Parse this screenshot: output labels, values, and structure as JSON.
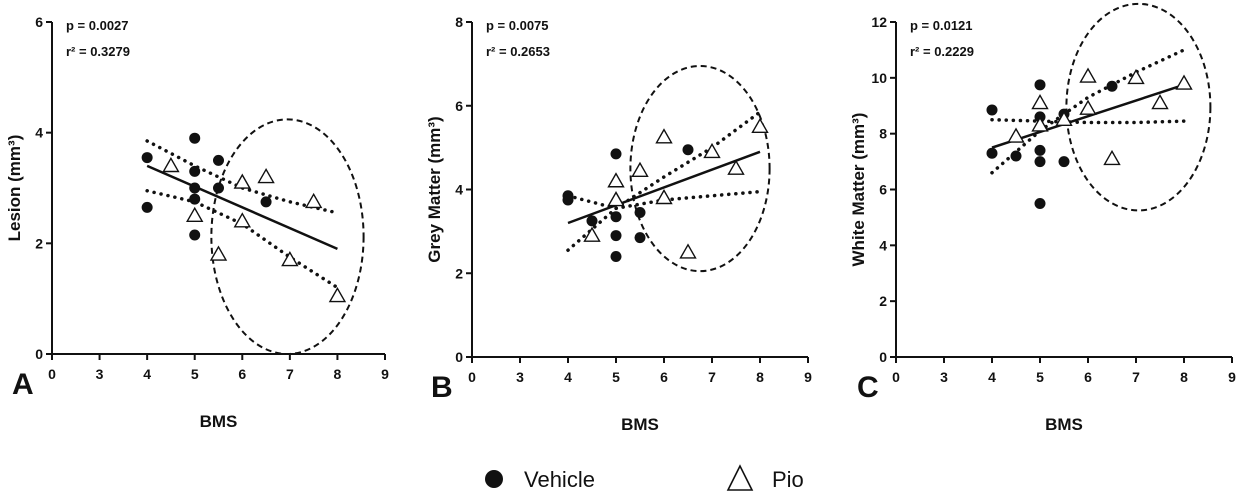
{
  "legend": [
    {
      "label": "Vehicle",
      "marker": "filled-circle"
    },
    {
      "label": "Pio",
      "marker": "open-triangle"
    }
  ],
  "colors": {
    "ink": "#111111",
    "background": "#ffffff"
  },
  "chart_data": [
    {
      "type": "scatter",
      "panel": "A",
      "xlabel": "BMS",
      "ylabel": "Lesion (mm³)",
      "xlim": [
        0,
        9
      ],
      "ylim": [
        0,
        6
      ],
      "xticks": [
        "0",
        "3",
        "4",
        "5",
        "6",
        "7",
        "8",
        "9"
      ],
      "yticks": [
        "0",
        "2",
        "4",
        "6"
      ],
      "stats": {
        "p": "p = 0.0027",
        "r2": "r² = 0.3279"
      },
      "series": [
        {
          "name": "Vehicle",
          "marker": "filled-circle",
          "points": [
            [
              4,
              3.55
            ],
            [
              4,
              2.65
            ],
            [
              5,
              3.9
            ],
            [
              5,
              3.3
            ],
            [
              5,
              3.0
            ],
            [
              5,
              2.8
            ],
            [
              5,
              2.15
            ],
            [
              5.5,
              3.5
            ],
            [
              5.5,
              3.0
            ],
            [
              6.5,
              2.75
            ]
          ]
        },
        {
          "name": "Pio",
          "marker": "open-triangle",
          "points": [
            [
              4.5,
              3.4
            ],
            [
              5,
              2.5
            ],
            [
              5.5,
              1.8
            ],
            [
              6,
              3.1
            ],
            [
              6,
              2.4
            ],
            [
              6.5,
              3.2
            ],
            [
              7,
              1.7
            ],
            [
              7.5,
              2.75
            ],
            [
              8,
              1.05
            ]
          ]
        }
      ],
      "fit_line": [
        [
          4,
          3.4
        ],
        [
          8,
          1.9
        ]
      ],
      "ci_upper": [
        [
          4,
          3.85
        ],
        [
          5,
          3.4
        ],
        [
          6,
          3.0
        ],
        [
          7,
          2.75
        ],
        [
          8,
          2.55
        ]
      ],
      "ci_lower": [
        [
          4,
          2.95
        ],
        [
          5,
          2.75
        ],
        [
          6,
          2.35
        ],
        [
          7,
          1.75
        ],
        [
          8,
          1.2
        ]
      ],
      "ellipse": {
        "cx": 6.95,
        "cy": 2.12,
        "rx": 1.6,
        "ry": 2.12
      }
    },
    {
      "type": "scatter",
      "panel": "B",
      "xlabel": "BMS",
      "ylabel": "Grey Matter (mm³)",
      "xlim": [
        0,
        9
      ],
      "ylim": [
        0,
        8
      ],
      "xticks": [
        "0",
        "3",
        "4",
        "5",
        "6",
        "7",
        "8",
        "9"
      ],
      "yticks": [
        "0",
        "2",
        "4",
        "6",
        "8"
      ],
      "stats": {
        "p": "p = 0.0075",
        "r2": "r² = 0.2653"
      },
      "series": [
        {
          "name": "Vehicle",
          "marker": "filled-circle",
          "points": [
            [
              4,
              3.85
            ],
            [
              4,
              3.75
            ],
            [
              4.5,
              3.25
            ],
            [
              5,
              4.85
            ],
            [
              5,
              3.35
            ],
            [
              5,
              2.9
            ],
            [
              5,
              2.4
            ],
            [
              5.5,
              3.45
            ],
            [
              5.5,
              2.85
            ],
            [
              6.5,
              4.95
            ]
          ]
        },
        {
          "name": "Pio",
          "marker": "open-triangle",
          "points": [
            [
              4.5,
              2.9
            ],
            [
              5,
              4.2
            ],
            [
              5,
              3.75
            ],
            [
              5.5,
              4.45
            ],
            [
              6,
              5.25
            ],
            [
              6,
              3.8
            ],
            [
              6.5,
              2.5
            ],
            [
              7,
              4.9
            ],
            [
              7.5,
              4.5
            ],
            [
              8,
              5.5
            ]
          ]
        }
      ],
      "fit_line": [
        [
          4,
          3.2
        ],
        [
          8,
          4.9
        ]
      ],
      "ci_upper": [
        [
          4,
          2.55
        ],
        [
          5,
          3.55
        ],
        [
          6,
          4.3
        ],
        [
          7,
          5.0
        ],
        [
          8,
          5.85
        ]
      ],
      "ci_lower": [
        [
          4,
          3.85
        ],
        [
          5,
          3.55
        ],
        [
          6,
          3.75
        ],
        [
          7,
          3.85
        ],
        [
          8,
          3.95
        ]
      ],
      "ellipse": {
        "cx": 6.75,
        "cy": 4.5,
        "rx": 1.45,
        "ry": 2.45
      }
    },
    {
      "type": "scatter",
      "panel": "C",
      "xlabel": "BMS",
      "ylabel": "White Matter (mm³)",
      "xlim": [
        0,
        9
      ],
      "ylim": [
        0,
        12
      ],
      "xticks": [
        "0",
        "3",
        "4",
        "5",
        "6",
        "7",
        "8",
        "9"
      ],
      "yticks": [
        "0",
        "2",
        "4",
        "6",
        "8",
        "10",
        "12"
      ],
      "stats": {
        "p": "p = 0.0121",
        "r2": "r² = 0.2229"
      },
      "series": [
        {
          "name": "Vehicle",
          "marker": "filled-circle",
          "points": [
            [
              4,
              8.85
            ],
            [
              4,
              7.3
            ],
            [
              4.5,
              7.2
            ],
            [
              5,
              9.75
            ],
            [
              5,
              8.6
            ],
            [
              5,
              7.4
            ],
            [
              5,
              7.0
            ],
            [
              5,
              5.5
            ],
            [
              5.5,
              8.7
            ],
            [
              5.5,
              7.0
            ],
            [
              6.5,
              9.7
            ]
          ]
        },
        {
          "name": "Pio",
          "marker": "open-triangle",
          "points": [
            [
              4.5,
              7.9
            ],
            [
              5,
              9.1
            ],
            [
              5,
              8.3
            ],
            [
              5.5,
              8.5
            ],
            [
              6,
              10.05
            ],
            [
              6,
              8.9
            ],
            [
              6.5,
              7.1
            ],
            [
              7,
              10.0
            ],
            [
              7.5,
              9.1
            ],
            [
              8,
              9.8
            ]
          ]
        }
      ],
      "fit_line": [
        [
          4,
          7.5
        ],
        [
          8,
          9.75
        ]
      ],
      "ci_upper": [
        [
          4,
          6.6
        ],
        [
          5,
          8.1
        ],
        [
          6,
          9.3
        ],
        [
          7,
          10.2
        ],
        [
          8,
          11.0
        ]
      ],
      "ci_lower": [
        [
          4,
          8.5
        ],
        [
          5,
          8.45
        ],
        [
          6,
          8.4
        ],
        [
          7,
          8.4
        ],
        [
          8,
          8.45
        ]
      ],
      "ellipse": {
        "cx": 7.05,
        "cy": 8.95,
        "rx": 1.5,
        "ry": 3.7
      }
    }
  ]
}
